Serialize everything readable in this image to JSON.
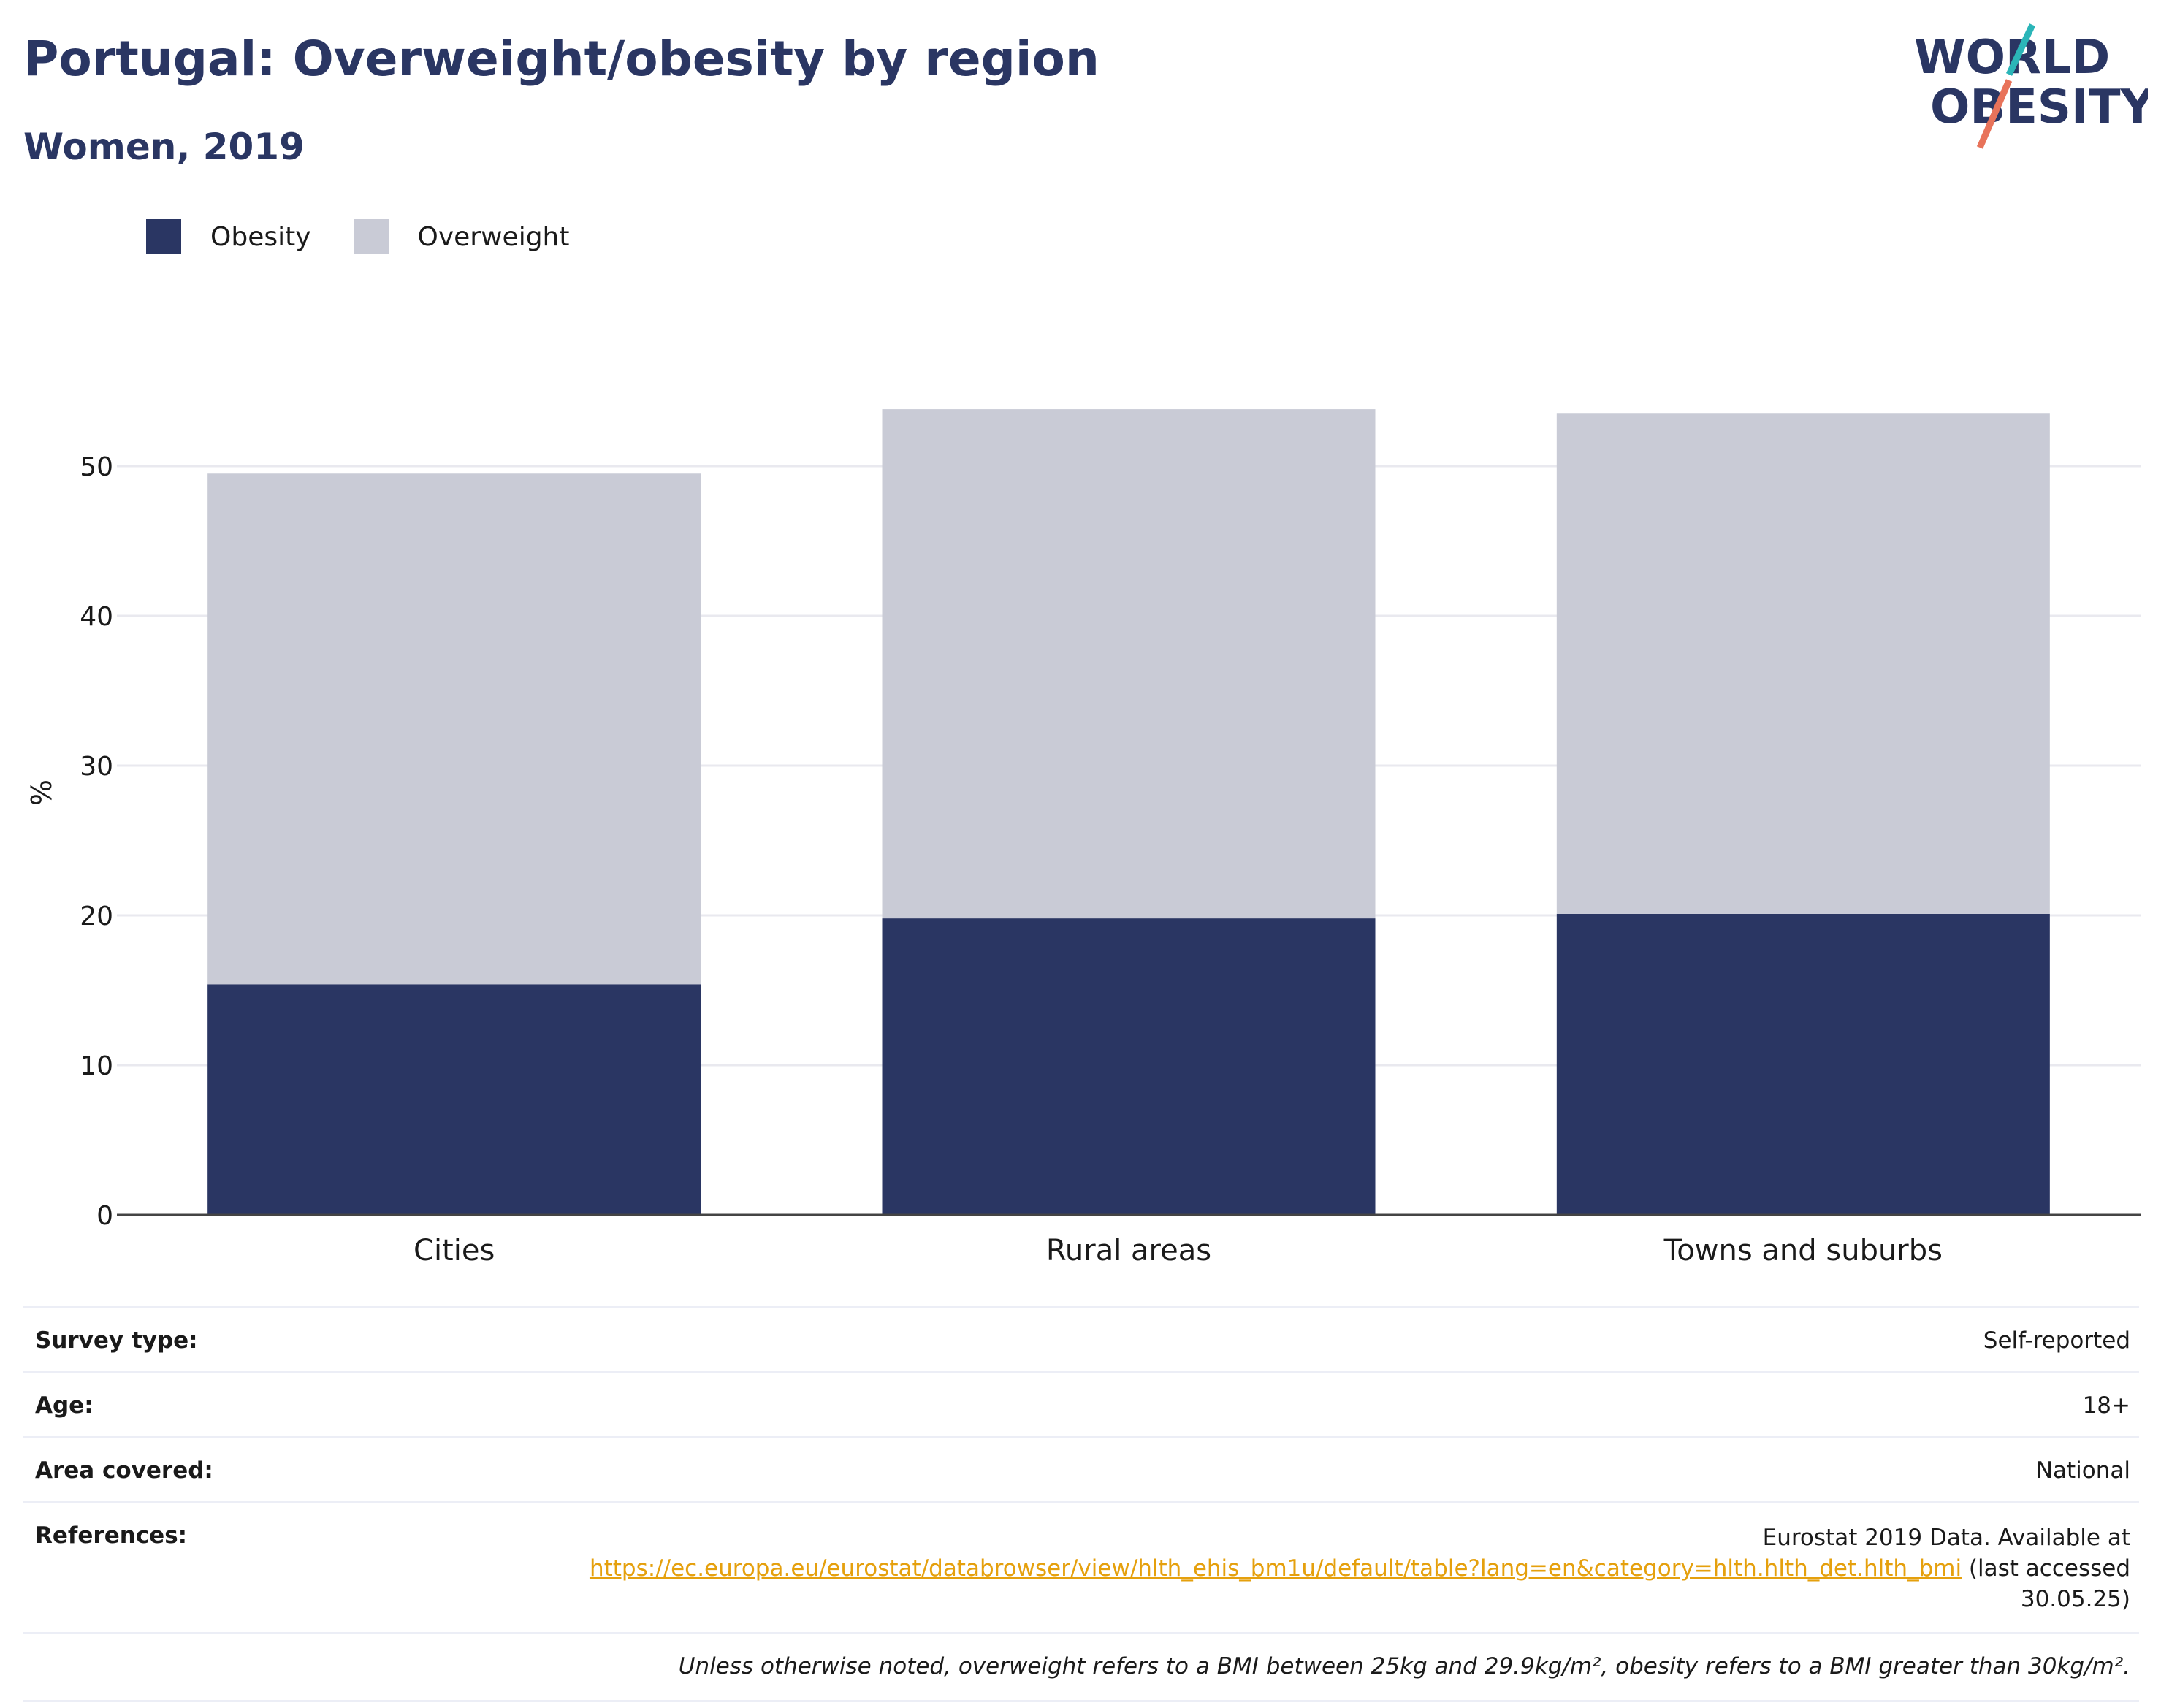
{
  "title": "Portugal: Overweight/obesity by region",
  "subtitle": "Women, 2019",
  "logo": {
    "line1": "WORLD",
    "line2": "OBESITY",
    "accent_teal": "#2bb5b8",
    "accent_coral": "#e8735a"
  },
  "colors": {
    "obesity": "#2a3663",
    "overweight": "#c9cbd6",
    "title": "#2a3663",
    "link": "#e5a00d"
  },
  "legend": [
    {
      "label": "Obesity"
    },
    {
      "label": "Overweight"
    }
  ],
  "chart_data": {
    "type": "bar",
    "stacked": true,
    "categories": [
      "Cities",
      "Rural areas",
      "Towns and suburbs"
    ],
    "series": [
      {
        "name": "Obesity",
        "values": [
          15.4,
          19.8,
          20.1
        ]
      },
      {
        "name": "Overweight",
        "values": [
          34.1,
          34.0,
          33.4
        ]
      }
    ],
    "title": "Portugal: Overweight/obesity by region",
    "subtitle": "Women, 2019",
    "xlabel": "",
    "ylabel": "%",
    "ylim": [
      0,
      60
    ],
    "yticks": [
      0,
      10,
      20,
      30,
      40,
      50
    ],
    "grid": true,
    "legend_position": "top-left"
  },
  "info": {
    "survey_type_label": "Survey type:",
    "survey_type_value": "Self-reported",
    "age_label": "Age:",
    "age_value": "18+",
    "area_label": "Area covered:",
    "area_value": "National",
    "references_label": "References:",
    "references_prefix": "Eurostat 2019 Data. Available at",
    "references_link": "https://ec.europa.eu/eurostat/databrowser/view/hlth_ehis_bm1u/default/table?lang=en&category=hlth.hlth_det.hlth_bmi",
    "references_suffix": "(last accessed 30.05.25)",
    "note": "Unless otherwise noted, overweight refers to a BMI between 25kg and 29.9kg/m², obesity refers to a BMI greater than 30kg/m²."
  }
}
